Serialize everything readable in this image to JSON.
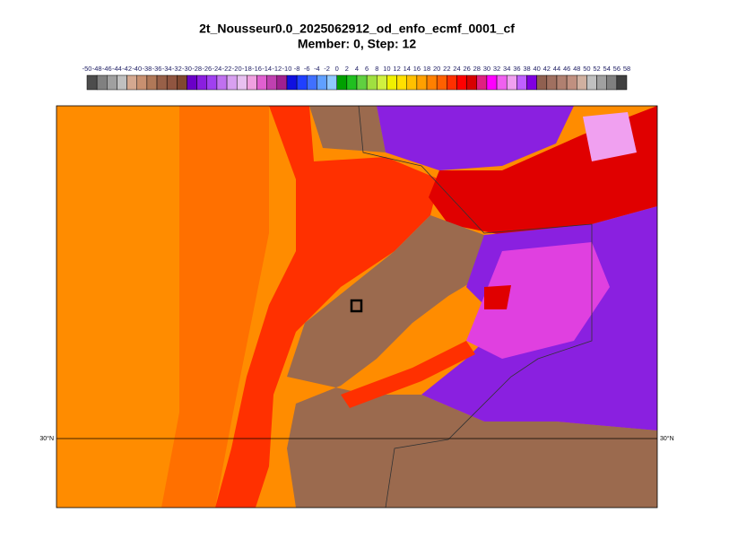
{
  "title": [
    "2t_Nousseur0.0_2025062912_od_enfo_ecmf_0001_cf",
    "Member: 0, Step: 12"
  ],
  "legend": {
    "ticks": [
      -50,
      -48,
      -46,
      -44,
      -42,
      -40,
      -38,
      -36,
      -34,
      -32,
      -30,
      -28,
      -26,
      -24,
      -22,
      -20,
      -18,
      -16,
      -14,
      -12,
      -10,
      -8,
      -6,
      -4,
      -2,
      0,
      2,
      4,
      6,
      8,
      10,
      12,
      14,
      16,
      18,
      20,
      22,
      24,
      26,
      28,
      30,
      32,
      34,
      36,
      38,
      40,
      42,
      44,
      46,
      48,
      50,
      52,
      54,
      56,
      58
    ],
    "colors": [
      "#4d4d4d",
      "#808080",
      "#a0a0a0",
      "#c0c0c0",
      "#d4a890",
      "#c89070",
      "#b07858",
      "#986048",
      "#905540",
      "#804830",
      "#6a00c8",
      "#8a1ee0",
      "#a040f0",
      "#c070f0",
      "#d8a0f0",
      "#e8c0f0",
      "#f0a0e0",
      "#e060d0",
      "#c040b0",
      "#a02090",
      "#1010e0",
      "#2040ff",
      "#4070ff",
      "#60a0ff",
      "#90c8ff",
      "#00a000",
      "#20c020",
      "#60d040",
      "#a0e040",
      "#d0f040",
      "#f0f000",
      "#ffe000",
      "#ffc000",
      "#ffa000",
      "#ff8000",
      "#ff6000",
      "#ff3000",
      "#ff0000",
      "#d80000",
      "#e02080",
      "#ff00ff",
      "#f060f0",
      "#f0a0f0",
      "#c060ff",
      "#8000e0",
      "#906050",
      "#a07060",
      "#b08070",
      "#c09080",
      "#d0b0a0",
      "#c0c0c0",
      "#a0a0a0",
      "#808080",
      "#404040"
    ]
  },
  "map": {
    "lat_labels": [
      "30°N",
      "30°N"
    ]
  }
}
